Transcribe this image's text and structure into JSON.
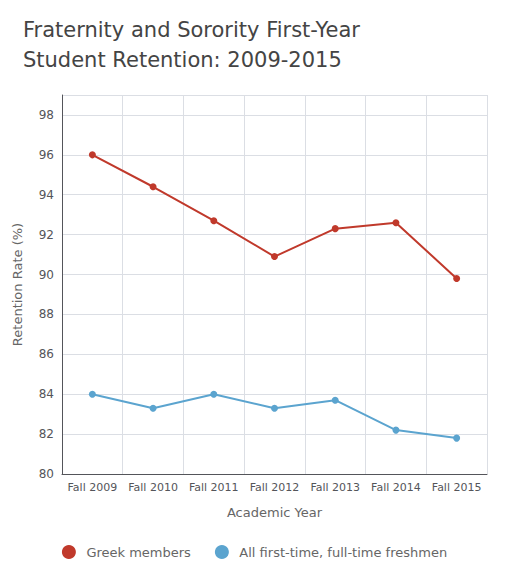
{
  "chart_data": {
    "type": "line",
    "title": "Fraternity and Sorority First-Year\nStudent Retention: 2009-2015",
    "x_label": "Academic Year",
    "y_label": "Retention Rate (%)",
    "categories": [
      "Fall 2009",
      "Fall 2010",
      "Fall 2011",
      "Fall 2012",
      "Fall 2013",
      "Fall 2014",
      "Fall 2015"
    ],
    "series": [
      {
        "name": "Greek members",
        "color": "#c0392b",
        "values": [
          96.0,
          94.4,
          92.7,
          90.9,
          92.3,
          92.6,
          89.8
        ]
      },
      {
        "name": "All first-time, full-time freshmen",
        "color": "#5ba4cf",
        "values": [
          84.0,
          83.3,
          84.0,
          83.3,
          83.7,
          82.2,
          81.8
        ]
      }
    ],
    "ylim": [
      80,
      99
    ],
    "yticks": [
      80,
      82,
      84,
      86,
      88,
      90,
      92,
      94,
      96,
      98
    ],
    "grid": true,
    "legend": "bottom",
    "marker": "circle"
  }
}
